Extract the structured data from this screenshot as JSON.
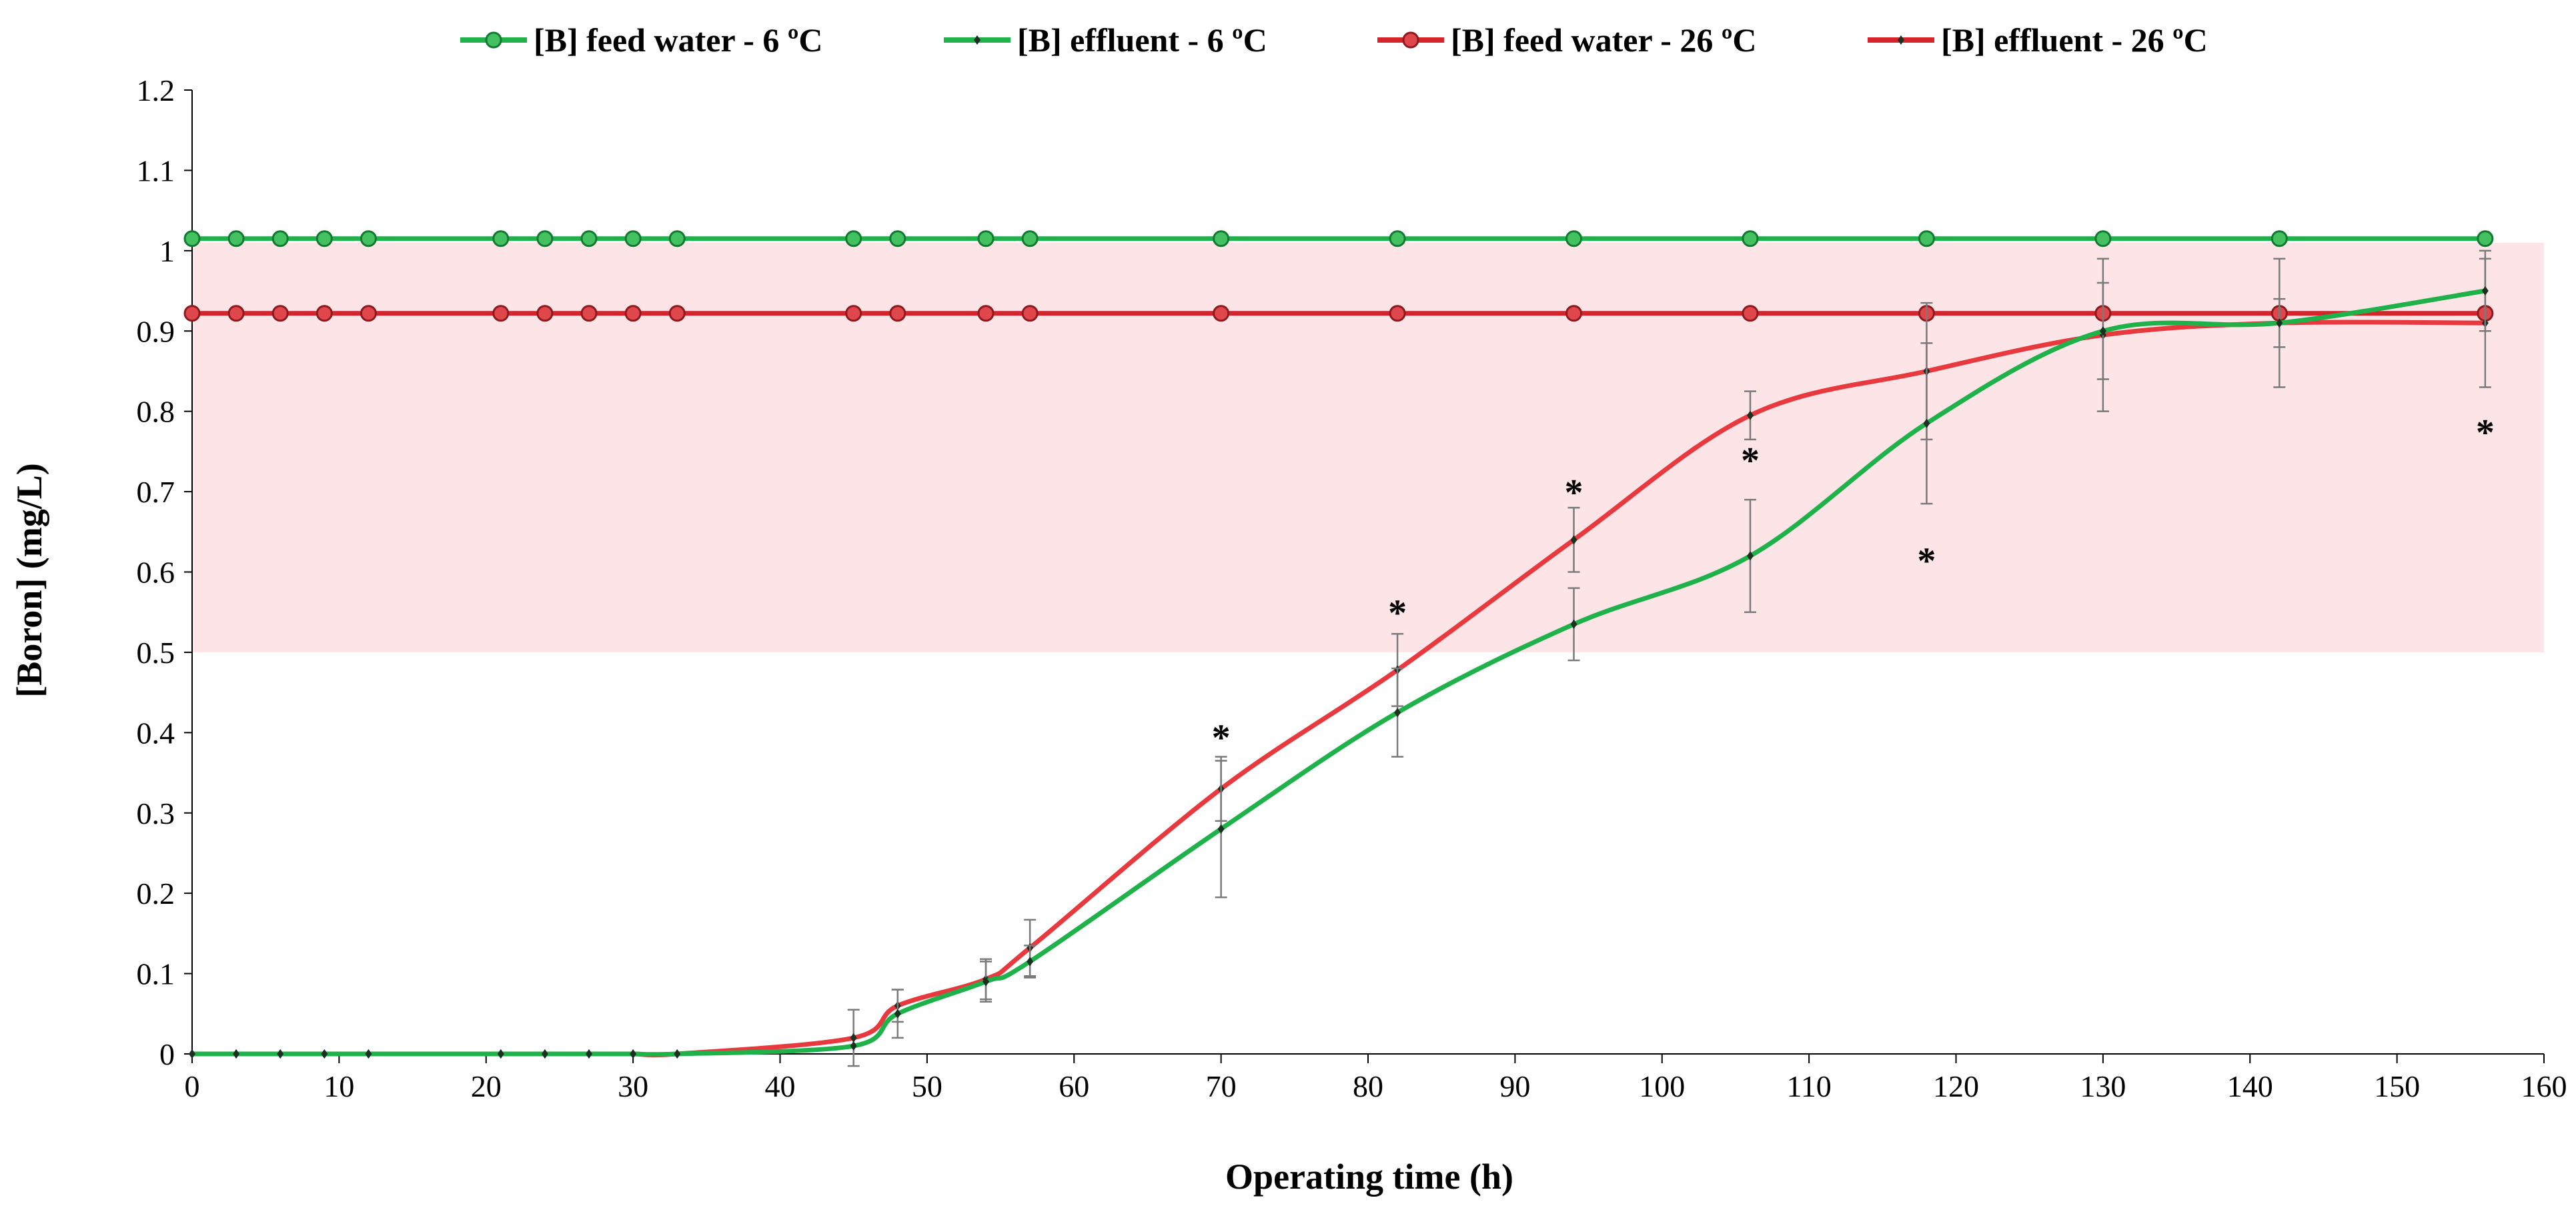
{
  "chart_data": {
    "type": "line",
    "xlabel": "Operating time (h)",
    "ylabel": "[Boron] (mg/L)",
    "xlim": [
      0,
      160
    ],
    "ylim": [
      0,
      1.2
    ],
    "x_ticks": [
      0,
      10,
      20,
      30,
      40,
      50,
      60,
      70,
      80,
      90,
      100,
      110,
      120,
      130,
      140,
      150,
      160
    ],
    "y_ticks": [
      "0",
      "0.1",
      "0.2",
      "0.3",
      "0.4",
      "0.5",
      "0.6",
      "0.7",
      "0.8",
      "0.9",
      "1",
      "1.1",
      "1.2"
    ],
    "shaded_band": {
      "y_from": 0.5,
      "y_to": 1.01,
      "color": "#fde5e7"
    },
    "series": [
      {
        "name": "[B] feed water - 6 ºC",
        "color": "#1fb24a",
        "marker": "circle",
        "x": [
          0,
          3,
          6,
          9,
          12,
          21,
          24,
          27,
          30,
          33,
          45,
          48,
          54,
          57,
          70,
          82,
          94,
          106,
          118,
          130,
          142,
          156
        ],
        "y": [
          1.015,
          1.015,
          1.015,
          1.015,
          1.015,
          1.015,
          1.015,
          1.015,
          1.015,
          1.015,
          1.015,
          1.015,
          1.015,
          1.015,
          1.015,
          1.015,
          1.015,
          1.015,
          1.015,
          1.015,
          1.015,
          1.015
        ]
      },
      {
        "name": "[B] effluent - 6 ºC",
        "color": "#1fb24a",
        "marker": "diamond",
        "x": [
          0,
          3,
          6,
          9,
          12,
          21,
          24,
          27,
          30,
          33,
          45,
          48,
          54,
          57,
          70,
          82,
          94,
          106,
          118,
          130,
          142,
          156
        ],
        "y": [
          0,
          0,
          0,
          0,
          0,
          0,
          0,
          0,
          0,
          0,
          0.01,
          0.05,
          0.09,
          0.115,
          0.28,
          0.425,
          0.535,
          0.62,
          0.785,
          0.9,
          0.91,
          0.95
        ],
        "err": [
          0,
          0,
          0,
          0,
          0,
          0,
          0,
          0,
          0,
          0,
          0,
          0.03,
          0.025,
          0.02,
          0.085,
          0.055,
          0.045,
          0.07,
          0.1,
          0.06,
          0.08,
          0.05
        ]
      },
      {
        "name": "[B] feed water - 26 ºC",
        "color": "#d6242a",
        "marker": "circle",
        "x": [
          0,
          3,
          6,
          9,
          12,
          21,
          24,
          27,
          30,
          33,
          45,
          48,
          54,
          57,
          70,
          82,
          94,
          106,
          118,
          130,
          142,
          156
        ],
        "y": [
          0.922,
          0.922,
          0.922,
          0.922,
          0.922,
          0.922,
          0.922,
          0.922,
          0.922,
          0.922,
          0.922,
          0.922,
          0.922,
          0.922,
          0.922,
          0.922,
          0.922,
          0.922,
          0.922,
          0.922,
          0.922,
          0.922
        ]
      },
      {
        "name": "[B] effluent - 26 ºC",
        "color": "#d6242a",
        "marker": "diamond",
        "x": [
          0,
          3,
          6,
          9,
          12,
          21,
          24,
          27,
          30,
          33,
          45,
          48,
          54,
          57,
          70,
          82,
          94,
          106,
          118,
          130,
          142,
          156
        ],
        "y": [
          0,
          0,
          0,
          0,
          0,
          0,
          0,
          0,
          0,
          0,
          0.02,
          0.06,
          0.093,
          0.132,
          0.33,
          0.478,
          0.64,
          0.795,
          0.85,
          0.895,
          0.91,
          0.91
        ],
        "err": [
          0,
          0,
          0,
          0,
          0,
          0,
          0,
          0,
          0,
          0,
          0.035,
          0.02,
          0.025,
          0.035,
          0.04,
          0.045,
          0.04,
          0.03,
          0.085,
          0.095,
          0.03,
          0.08
        ]
      }
    ],
    "annotations": [
      {
        "text": "*",
        "x": 70,
        "y": 0.395
      },
      {
        "text": "*",
        "x": 82,
        "y": 0.55
      },
      {
        "text": "*",
        "x": 94,
        "y": 0.7
      },
      {
        "text": "*",
        "x": 106,
        "y": 0.74
      },
      {
        "text": "*",
        "x": 118,
        "y": 0.615
      },
      {
        "text": "*",
        "x": 156,
        "y": 0.775
      }
    ]
  }
}
